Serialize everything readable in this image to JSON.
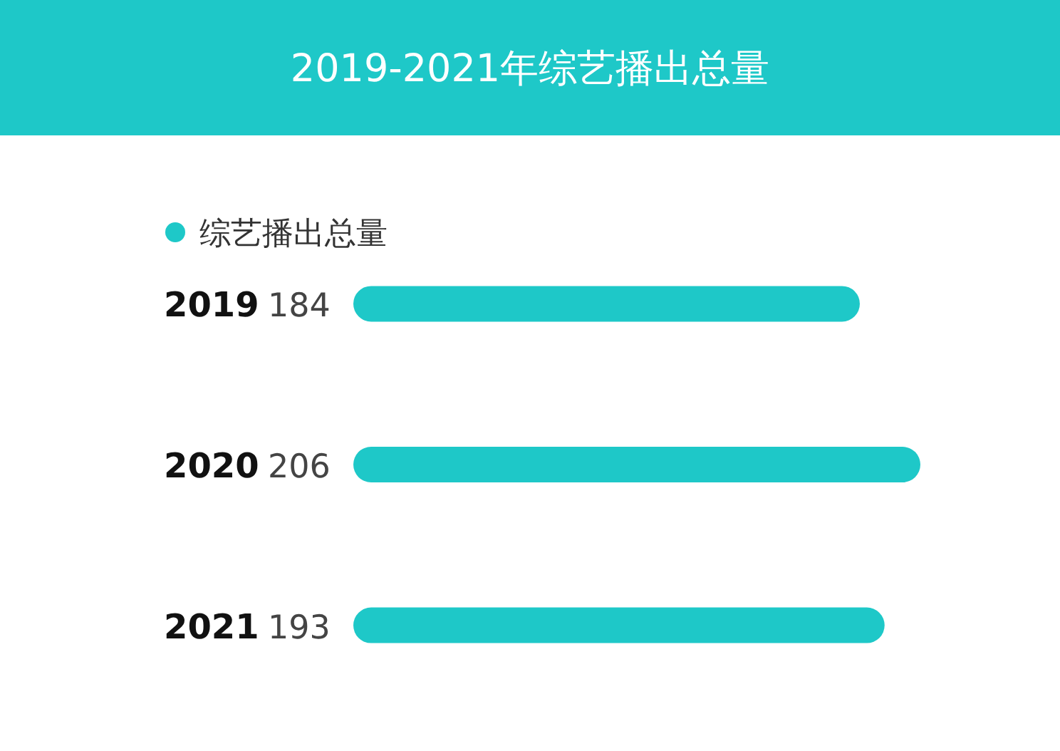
{
  "chart_data": {
    "type": "bar",
    "orientation": "horizontal",
    "title": "2019-2021年综艺播出总量",
    "categories": [
      "2019",
      "2020",
      "2021"
    ],
    "series": [
      {
        "name": "综艺播出总量",
        "color": "#1ec8c8",
        "values": [
          184,
          206,
          193
        ]
      }
    ],
    "data_labels": true,
    "legend": "top left"
  }
}
